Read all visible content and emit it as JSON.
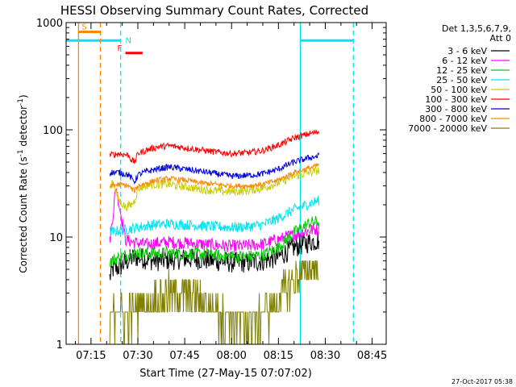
{
  "chart_data": {
    "type": "line",
    "title": "HESSI Observing Summary Count Rates, Corrected",
    "xlabel": "Start Time (27-May-15 07:07:02)",
    "ylabel": "Corrected Count Rate (s-1 detector-1)",
    "ylabel_parts": {
      "base": "Corrected Count Rate (s",
      "exp1": "-1",
      "mid": " detector",
      "exp2": "-1",
      "end": ")"
    },
    "x_tick_labels": [
      "07:15",
      "07:30",
      "07:45",
      "08:00",
      "08:15",
      "08:30",
      "08:45"
    ],
    "x_ticks_min": [
      15,
      30,
      45,
      60,
      75,
      90,
      105
    ],
    "xlim_min": [
      7.03,
      109.5
    ],
    "y_scale": "log",
    "ylim": [
      1,
      1000
    ],
    "y_tick_labels": [
      "1",
      "10",
      "100",
      "1000"
    ],
    "legend": {
      "placement": "top-right-outside",
      "header": [
        "Det 1,3,5,6,7,9,",
        "Att 0"
      ]
    },
    "series": [
      {
        "name": "3 - 6 keV",
        "color": "#000000",
        "points": [
          [
            21,
            4.2
          ],
          [
            22,
            5.0
          ],
          [
            24,
            5.2
          ],
          [
            26,
            5.8
          ],
          [
            28,
            6.3
          ],
          [
            30,
            6.5
          ],
          [
            33,
            6.2
          ],
          [
            36,
            6.0
          ],
          [
            40,
            6.1
          ],
          [
            45,
            6.3
          ],
          [
            50,
            6.2
          ],
          [
            55,
            6.0
          ],
          [
            60,
            5.8
          ],
          [
            65,
            5.8
          ],
          [
            70,
            6.0
          ],
          [
            75,
            6.5
          ],
          [
            80,
            8.0
          ],
          [
            85,
            9.0
          ],
          [
            88,
            9.3
          ]
        ]
      },
      {
        "name": "6 - 12 keV",
        "color": "#ff00ff",
        "points": [
          [
            21,
            9.0
          ],
          [
            22,
            16
          ],
          [
            23,
            30
          ],
          [
            24,
            20
          ],
          [
            25,
            14
          ],
          [
            26,
            9.5
          ],
          [
            28,
            9.0
          ],
          [
            30,
            8.8
          ],
          [
            33,
            8.5
          ],
          [
            36,
            8.8
          ],
          [
            40,
            9.0
          ],
          [
            45,
            8.8
          ],
          [
            50,
            8.6
          ],
          [
            55,
            8.4
          ],
          [
            60,
            8.2
          ],
          [
            65,
            8.3
          ],
          [
            70,
            8.6
          ],
          [
            75,
            9.5
          ],
          [
            80,
            10.5
          ],
          [
            85,
            11.5
          ],
          [
            88,
            12.0
          ]
        ]
      },
      {
        "name": "12 - 25 keV",
        "color": "#00cc00",
        "points": [
          [
            21,
            6.0
          ],
          [
            23,
            6.3
          ],
          [
            26,
            6.8
          ],
          [
            28,
            7.0
          ],
          [
            30,
            7.2
          ],
          [
            33,
            7.0
          ],
          [
            36,
            7.0
          ],
          [
            40,
            7.1
          ],
          [
            45,
            7.0
          ],
          [
            50,
            7.0
          ],
          [
            55,
            6.8
          ],
          [
            60,
            6.6
          ],
          [
            65,
            6.6
          ],
          [
            70,
            6.8
          ],
          [
            75,
            8.0
          ],
          [
            80,
            11.0
          ],
          [
            85,
            13.5
          ],
          [
            88,
            14.0
          ]
        ]
      },
      {
        "name": "25 - 50 keV",
        "color": "#00e5ee",
        "points": [
          [
            21,
            11.0
          ],
          [
            24,
            11.5
          ],
          [
            28,
            12.0
          ],
          [
            31,
            12.5
          ],
          [
            35,
            13.0
          ],
          [
            40,
            13.3
          ],
          [
            45,
            13.0
          ],
          [
            50,
            12.8
          ],
          [
            55,
            12.5
          ],
          [
            60,
            12.3
          ],
          [
            65,
            12.5
          ],
          [
            70,
            13.0
          ],
          [
            75,
            15.0
          ],
          [
            80,
            18.0
          ],
          [
            85,
            20.5
          ],
          [
            88,
            22.0
          ]
        ]
      },
      {
        "name": "50 - 100 keV",
        "color": "#cccc00",
        "points": [
          [
            21,
            28
          ],
          [
            22,
            35
          ],
          [
            23,
            26
          ],
          [
            24,
            22
          ],
          [
            26,
            19
          ],
          [
            28,
            20
          ],
          [
            29,
            22
          ],
          [
            30,
            28
          ],
          [
            32,
            30
          ],
          [
            35,
            31
          ],
          [
            40,
            31
          ],
          [
            45,
            29.5
          ],
          [
            50,
            28
          ],
          [
            55,
            27
          ],
          [
            60,
            26.5
          ],
          [
            65,
            27
          ],
          [
            70,
            28.5
          ],
          [
            75,
            32
          ],
          [
            80,
            37
          ],
          [
            85,
            40
          ],
          [
            88,
            42
          ]
        ]
      },
      {
        "name": "100 - 300 keV",
        "color": "#ff0000",
        "points": [
          [
            21,
            58
          ],
          [
            24,
            60
          ],
          [
            27,
            58
          ],
          [
            28,
            52
          ],
          [
            29,
            50
          ],
          [
            30,
            60
          ],
          [
            33,
            65
          ],
          [
            36,
            69
          ],
          [
            40,
            71
          ],
          [
            45,
            68
          ],
          [
            50,
            65
          ],
          [
            55,
            62
          ],
          [
            60,
            60
          ],
          [
            65,
            61
          ],
          [
            70,
            64
          ],
          [
            75,
            72
          ],
          [
            80,
            84
          ],
          [
            85,
            92
          ],
          [
            88,
            96
          ]
        ]
      },
      {
        "name": "300 - 800 keV",
        "color": "#0000dd",
        "points": [
          [
            21,
            40
          ],
          [
            24,
            40
          ],
          [
            27,
            38
          ],
          [
            28,
            35
          ],
          [
            29,
            33
          ],
          [
            30,
            38
          ],
          [
            33,
            41
          ],
          [
            36,
            43
          ],
          [
            40,
            45
          ],
          [
            45,
            43
          ],
          [
            50,
            41
          ],
          [
            55,
            39
          ],
          [
            60,
            37
          ],
          [
            65,
            37.5
          ],
          [
            70,
            39
          ],
          [
            75,
            43
          ],
          [
            80,
            50
          ],
          [
            85,
            55
          ],
          [
            88,
            57
          ]
        ]
      },
      {
        "name": "800 - 7000 keV",
        "color": "#ff8800",
        "points": [
          [
            21,
            30
          ],
          [
            24,
            31
          ],
          [
            27,
            30
          ],
          [
            28,
            28
          ],
          [
            29,
            27
          ],
          [
            30,
            30
          ],
          [
            33,
            32
          ],
          [
            36,
            34
          ],
          [
            40,
            35
          ],
          [
            45,
            34
          ],
          [
            50,
            32
          ],
          [
            55,
            31
          ],
          [
            60,
            30
          ],
          [
            65,
            30
          ],
          [
            70,
            31
          ],
          [
            75,
            34
          ],
          [
            80,
            40
          ],
          [
            85,
            44
          ],
          [
            88,
            47
          ]
        ]
      },
      {
        "name": "7000 - 20000 keV",
        "color": "#808000",
        "points": [
          [
            21,
            1.6
          ],
          [
            24,
            1.9
          ],
          [
            27,
            1.8
          ],
          [
            30,
            2.0
          ],
          [
            33,
            2.4
          ],
          [
            36,
            2.6
          ],
          [
            40,
            3.0
          ],
          [
            45,
            3.0
          ],
          [
            50,
            2.5
          ],
          [
            55,
            2.0
          ],
          [
            60,
            1.6
          ],
          [
            65,
            1.5
          ],
          [
            70,
            1.8
          ],
          [
            75,
            2.6
          ],
          [
            80,
            4.0
          ],
          [
            85,
            5.0
          ],
          [
            88,
            5.5
          ]
        ]
      }
    ],
    "vertical_lines": [
      {
        "x": 11.0,
        "color": "#ff8800",
        "style": "solid"
      },
      {
        "x": 18.0,
        "color": "#ff8800",
        "style": "dashed"
      },
      {
        "x": 24.5,
        "color": "#00e5ee",
        "style": "dashed"
      },
      {
        "x": 82.0,
        "color": "#00e5ee",
        "style": "solid"
      },
      {
        "x": 99.0,
        "color": "#00e5ee",
        "style": "dashed"
      }
    ],
    "flag_bars": [
      {
        "label": "S",
        "color": "#ff8800",
        "x_start": 11.0,
        "x_end": 18.0,
        "y": 820
      },
      {
        "label": "N",
        "color": "#00e5ee",
        "x_start": 7.03,
        "x_end": 24.5,
        "y": 680
      },
      {
        "label": "",
        "color": "#00e5ee",
        "x_start": 82.0,
        "x_end": 99.0,
        "y": 680
      },
      {
        "label": "F",
        "color": "#ff0000",
        "x_start": 26.0,
        "x_end": 31.5,
        "y": 520
      }
    ],
    "footer_date": "27-Oct-2017 05:38"
  }
}
